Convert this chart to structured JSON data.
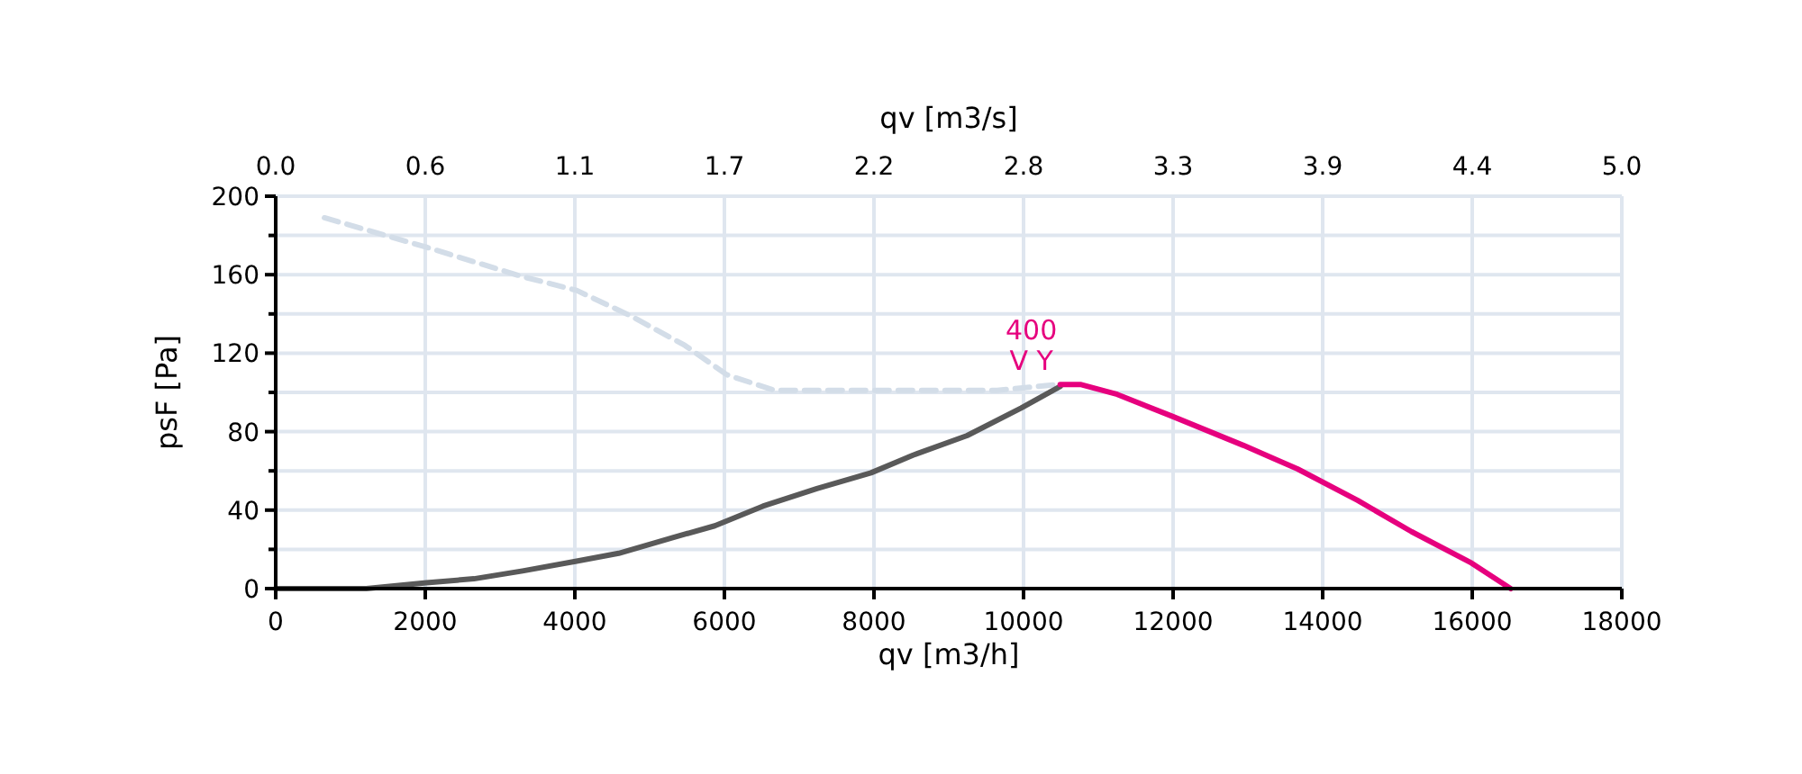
{
  "chart_data": {
    "type": "line",
    "xlabel": "qv [m3/h]",
    "x2label": "qv [m3/s]",
    "ylabel": "psF [Pa]",
    "xlim": [
      0,
      18000
    ],
    "xticks": [
      0,
      2000,
      4000,
      6000,
      8000,
      10000,
      12000,
      14000,
      16000,
      18000
    ],
    "x2lim": [
      0,
      5
    ],
    "x2ticks": [
      {
        "value": 0,
        "label": "0.0"
      },
      {
        "value": 0.5556,
        "label": "0.6"
      },
      {
        "value": 1.1111,
        "label": "1.1"
      },
      {
        "value": 1.6667,
        "label": "1.7"
      },
      {
        "value": 2.2222,
        "label": "2.2"
      },
      {
        "value": 2.7778,
        "label": "2.8"
      },
      {
        "value": 3.3333,
        "label": "3.3"
      },
      {
        "value": 3.8889,
        "label": "3.9"
      },
      {
        "value": 4.4444,
        "label": "4.4"
      },
      {
        "value": 5,
        "label": "5.0"
      }
    ],
    "ylim": [
      0,
      200
    ],
    "yticks": [
      0,
      {
        "value": 20,
        "label": null
      },
      40,
      {
        "value": 60,
        "label": null
      },
      80,
      {
        "value": 100,
        "label": null
      },
      120,
      {
        "value": 140,
        "label": null
      },
      160,
      {
        "value": 180,
        "label": null
      },
      200
    ],
    "grid": true,
    "marker": "none",
    "series": [
      {
        "color": "#d3dde8",
        "line_style": "dashed",
        "x": [
          651,
          2017,
          3301,
          4024,
          4747,
          5470,
          6032,
          6675,
          9647,
          10449
        ],
        "values": [
          189,
          174,
          159,
          152,
          139,
          124,
          109,
          101,
          101,
          104
        ]
      },
      {
        "color": "#595959",
        "line_style": "solid",
        "x": [
          0,
          1212,
          2017,
          2651,
          3301,
          4024,
          4586,
          5309,
          5871,
          6514,
          7237,
          7960,
          8522,
          9245,
          9968,
          10490
        ],
        "values": [
          0,
          0,
          3,
          5,
          9,
          14,
          18,
          26,
          32,
          42,
          51,
          59,
          68,
          78,
          92,
          103
        ]
      },
      {
        "color": "#e6007e",
        "line_style": "solid",
        "x": [
          10490,
          10771,
          11253,
          11976,
          12940,
          13663,
          14466,
          15189,
          15992,
          16514
        ],
        "values": [
          104,
          104,
          99,
          88,
          73,
          61,
          45,
          29,
          13,
          0
        ]
      }
    ],
    "annotations": [
      {
        "text": "400\nV Y",
        "x": 10490,
        "y": 104
      }
    ]
  }
}
